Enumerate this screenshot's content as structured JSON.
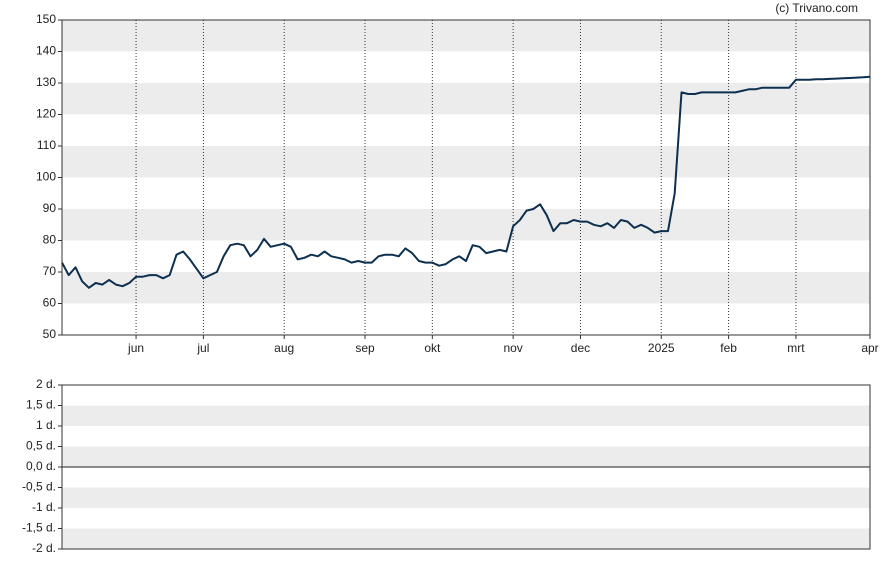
{
  "chart_data": [
    {
      "type": "line",
      "source": "(c) Trivano.com",
      "color": "#0d3050",
      "categories": [
        null,
        null,
        null,
        null,
        null,
        null,
        null,
        null,
        null,
        null,
        null,
        "jun",
        null,
        null,
        null,
        null,
        null,
        null,
        null,
        null,
        null,
        "jul",
        null,
        null,
        null,
        null,
        null,
        null,
        null,
        null,
        null,
        null,
        null,
        "aug",
        null,
        null,
        null,
        null,
        null,
        null,
        null,
        null,
        null,
        null,
        null,
        "sep",
        null,
        null,
        null,
        null,
        null,
        null,
        null,
        null,
        null,
        "okt",
        null,
        null,
        null,
        null,
        null,
        null,
        null,
        null,
        null,
        null,
        null,
        "nov",
        null,
        null,
        null,
        null,
        null,
        null,
        null,
        null,
        null,
        "dec",
        null,
        null,
        null,
        null,
        null,
        null,
        null,
        null,
        null,
        null,
        null,
        "2025",
        null,
        null,
        null,
        null,
        null,
        null,
        null,
        null,
        null,
        "feb",
        null,
        null,
        null,
        null,
        null,
        null,
        null,
        null,
        null,
        "mrt",
        null,
        null,
        null,
        null,
        null,
        null,
        null,
        null,
        null,
        null,
        "apr"
      ],
      "values": [
        73,
        69,
        71.5,
        67,
        65,
        66.5,
        66,
        67.5,
        66,
        65.5,
        66.5,
        68.5,
        68.5,
        69,
        69,
        68,
        69,
        75.5,
        76.5,
        74,
        71,
        68,
        69,
        70,
        75,
        78.5,
        79,
        78.5,
        75,
        77,
        80.5,
        78,
        78.5,
        79,
        78,
        74,
        74.5,
        75.5,
        75,
        76.5,
        75,
        74.5,
        74,
        73,
        73.5,
        73,
        73,
        75,
        75.5,
        75.5,
        75,
        77.5,
        76,
        73.5,
        73,
        73,
        72,
        72.5,
        74,
        75,
        73.5,
        78.5,
        78,
        76,
        76.5,
        77,
        76.5,
        84.5,
        86.5,
        89.5,
        90,
        91.5,
        88,
        83,
        85.5,
        85.5,
        86.5,
        86,
        86,
        85,
        84.5,
        85.5,
        84,
        86.5,
        86,
        84,
        85,
        84,
        82.5,
        83,
        83,
        95,
        127,
        126.5,
        126.5,
        127,
        127,
        127,
        127,
        127,
        127,
        127.5,
        128,
        128,
        128.5,
        128.5,
        128.5,
        128.5,
        128.5,
        131,
        131,
        131,
        131.2,
        131.2,
        131.3,
        131.4,
        131.5,
        131.6,
        131.7,
        131.8,
        132
      ],
      "ylim": [
        50,
        150
      ],
      "yticks": [
        50,
        60,
        70,
        80,
        90,
        100,
        110,
        120,
        130,
        140,
        150
      ],
      "grid": true
    },
    {
      "type": "line",
      "ylim": [
        -2,
        2
      ],
      "yticks": [
        {
          "value": -2,
          "label": "-2 d."
        },
        {
          "value": -1.5,
          "label": "-1,5 d."
        },
        {
          "value": -1,
          "label": "-1 d."
        },
        {
          "value": -0.5,
          "label": "-0,5 d."
        },
        {
          "value": 0,
          "label": "0,0 d."
        },
        {
          "value": 0.5,
          "label": "0,5 d."
        },
        {
          "value": 1,
          "label": "1 d."
        },
        {
          "value": 1.5,
          "label": "1,5 d."
        },
        {
          "value": 2,
          "label": "2 d."
        }
      ],
      "grid": true
    }
  ]
}
